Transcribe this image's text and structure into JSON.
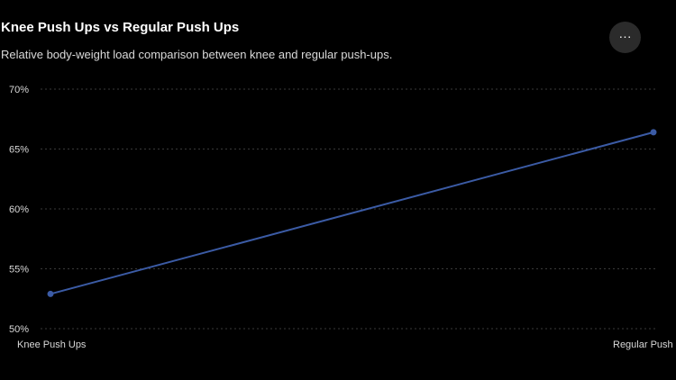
{
  "header": {
    "title": "Knee Push Ups vs Regular Push Ups",
    "subtitle": "Relative body-weight load comparison between knee and regular push-ups.",
    "more_icon": "more-horizontal-icon",
    "more_glyph": "···"
  },
  "colors": {
    "background": "#000000",
    "line": "#3b5ba5",
    "point": "#3b5ba5",
    "grid": "#3a3a3a",
    "text": "#d9d9d9"
  },
  "chart_data": {
    "type": "line",
    "title": "Knee Push Ups vs Regular Push Ups",
    "subtitle": "Relative body-weight load comparison between knee and regular push-ups.",
    "categories": [
      "Knee Push Ups",
      "Regular Push"
    ],
    "series": [
      {
        "values": [
          52.9,
          66.4
        ]
      }
    ],
    "ylim": [
      50,
      70
    ],
    "yticks": [
      50,
      55,
      60,
      65,
      70
    ],
    "ytick_labels": [
      "50%",
      "55%",
      "60%",
      "65%",
      "70%"
    ],
    "grid": true,
    "legend": "none"
  }
}
